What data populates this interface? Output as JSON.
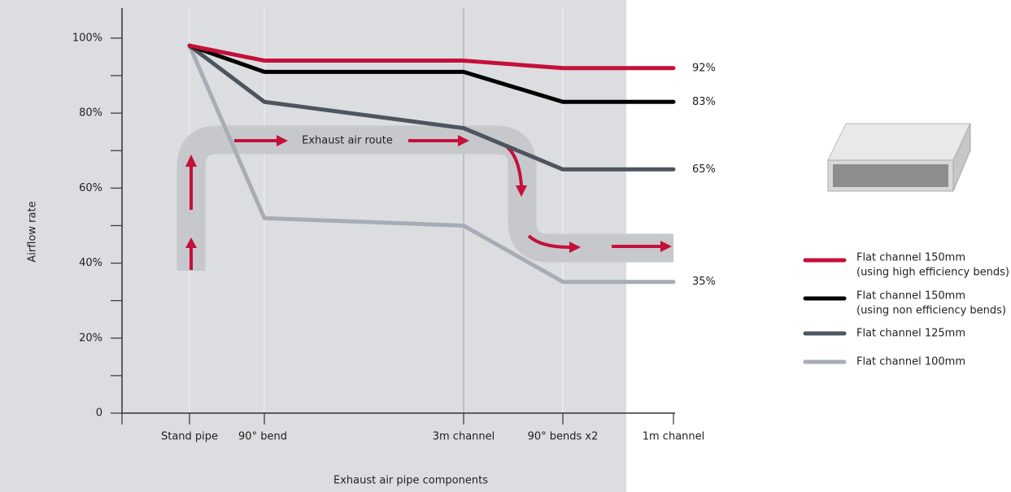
{
  "chart_data": {
    "type": "line",
    "ylabel": "Airflow rate",
    "xlabel": "Exhaust air pipe components",
    "categories": [
      "Stand pipe",
      "90° bend",
      "3m channel",
      "90° bends x2",
      "1m channel"
    ],
    "ylim": [
      0,
      108
    ],
    "yticks": [
      0,
      {
        "value": 20,
        "label": "20%"
      },
      {
        "value": 40,
        "label": "40%"
      },
      {
        "value": 60,
        "label": "60%"
      },
      {
        "value": 80,
        "label": "80%"
      },
      {
        "value": 100,
        "label": "100%"
      }
    ],
    "yminorticks": [
      10,
      30,
      50,
      70,
      90
    ],
    "annotation": "Exhaust air route",
    "series": [
      {
        "name": "Flat channel 150mm",
        "note": "(using high efficiency bends)",
        "color": "#c4103a",
        "values": [
          98,
          94,
          94,
          92,
          92
        ],
        "value_labels": [
          null,
          null,
          null,
          null,
          "92%"
        ]
      },
      {
        "name": "Flat channel 150mm",
        "note": "(using non efficiency bends)",
        "color": "#000000",
        "values": [
          98,
          91,
          91,
          83,
          83
        ],
        "value_labels": [
          null,
          null,
          null,
          null,
          "83%"
        ]
      },
      {
        "name": "Flat channel 125mm",
        "color": "#4d5560",
        "values": [
          98,
          83,
          76,
          65,
          65
        ],
        "value_labels": [
          null,
          null,
          null,
          null,
          "65%"
        ]
      },
      {
        "name": "Flat channel 100mm",
        "color": "#a7adb6",
        "values": [
          98,
          52,
          50,
          35,
          35
        ],
        "value_labels": [
          null,
          null,
          null,
          null,
          "35%"
        ]
      }
    ]
  }
}
